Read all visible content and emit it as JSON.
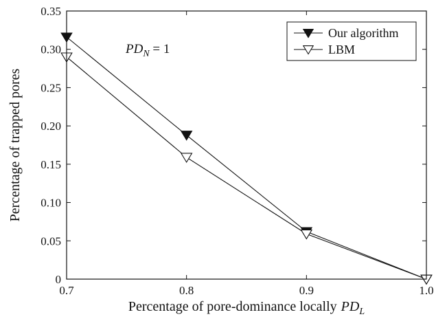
{
  "chart_data": {
    "type": "line",
    "title": "",
    "xlabel": "Percentage of pore-dominance locally",
    "xlabel_symbol": "PD",
    "xlabel_subscript": "L",
    "ylabel": "Percentage of trapped pores",
    "xlim": [
      0.7,
      1.0
    ],
    "ylim": [
      0,
      0.35
    ],
    "x_ticks": [
      "0.7",
      "0.8",
      "0.9",
      "1.0"
    ],
    "y_ticks": [
      "0",
      "0.05",
      "0.10",
      "0.15",
      "0.20",
      "0.25",
      "0.30",
      "0.35"
    ],
    "grid": false,
    "legend_position": "top-right",
    "annotation": {
      "symbol": "PD",
      "subscript": "N",
      "text": " = 1"
    },
    "x": [
      0.7,
      0.8,
      0.9,
      1.0
    ],
    "series": [
      {
        "name": "Our algorithm",
        "values": [
          0.316,
          0.188,
          0.062,
          0.0
        ],
        "marker": "filled-down-triangle",
        "color": "#111111"
      },
      {
        "name": "LBM",
        "values": [
          0.29,
          0.159,
          0.059,
          0.0
        ],
        "marker": "open-down-triangle",
        "color": "#111111"
      }
    ]
  }
}
